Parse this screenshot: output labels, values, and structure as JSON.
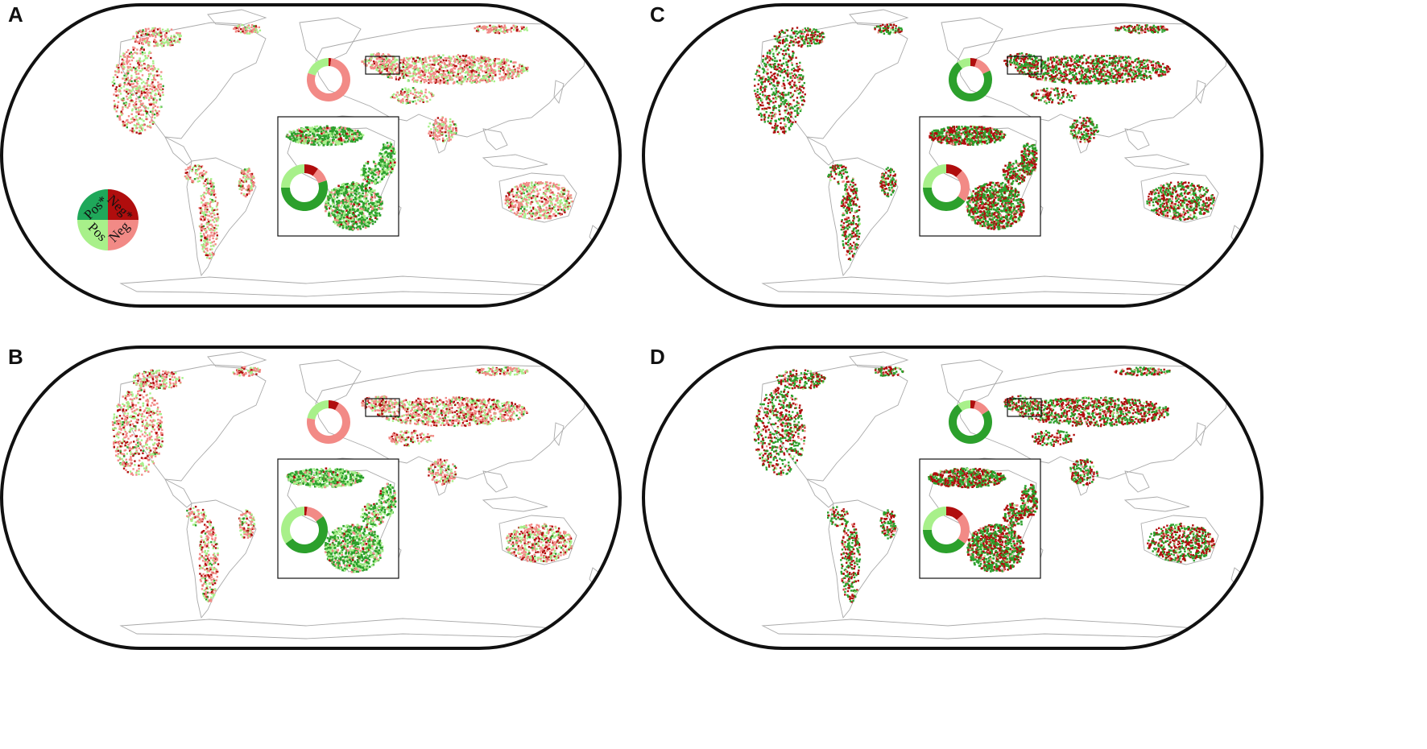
{
  "colors": {
    "pos_sig": "#2ca02c",
    "pos": "#a8f08a",
    "neg_sig": "#b00d0d",
    "neg": "#f28a86",
    "land_outline": "#a9a9a9",
    "frame": "#111111",
    "legend_pos_sig": "#1fa85a"
  },
  "legend": {
    "labels": {
      "pos_sig": "Pos*",
      "neg_sig": "Neg*",
      "pos": "Pos",
      "neg": "Neg"
    }
  },
  "panels": [
    {
      "letter": "A",
      "show_legend": true,
      "eurasia_donut": {
        "neg_sig": 0.02,
        "neg": 0.78,
        "pos": 0.2,
        "pos_sig": 0.0
      },
      "africa_donut": {
        "neg_sig": 0.1,
        "neg": 0.1,
        "pos_sig": 0.55,
        "pos": 0.25
      },
      "dots": {
        "neg_sig": 0.15,
        "neg": 0.5,
        "pos": 0.3,
        "pos_sig": 0.05
      },
      "africa_dots": {
        "neg_sig": 0.05,
        "neg": 0.1,
        "pos": 0.3,
        "pos_sig": 0.55
      }
    },
    {
      "letter": "B",
      "show_legend": false,
      "eurasia_donut": {
        "neg_sig": 0.08,
        "neg": 0.7,
        "pos": 0.22,
        "pos_sig": 0.0
      },
      "africa_donut": {
        "neg_sig": 0.02,
        "neg": 0.13,
        "pos_sig": 0.5,
        "pos": 0.35
      },
      "dots": {
        "neg_sig": 0.2,
        "neg": 0.45,
        "pos": 0.3,
        "pos_sig": 0.05
      },
      "africa_dots": {
        "neg_sig": 0.05,
        "neg": 0.1,
        "pos": 0.35,
        "pos_sig": 0.5
      }
    },
    {
      "letter": "C",
      "show_legend": false,
      "eurasia_donut": {
        "neg_sig": 0.05,
        "neg": 0.13,
        "pos_sig": 0.72,
        "pos": 0.1
      },
      "africa_donut": {
        "neg_sig": 0.12,
        "neg": 0.23,
        "pos_sig": 0.4,
        "pos": 0.25
      },
      "dots": {
        "neg_sig": 0.45,
        "neg": 0.05,
        "pos": 0.05,
        "pos_sig": 0.45
      },
      "africa_dots": {
        "neg_sig": 0.4,
        "neg": 0.05,
        "pos": 0.05,
        "pos_sig": 0.5
      }
    },
    {
      "letter": "D",
      "show_legend": false,
      "eurasia_donut": {
        "neg_sig": 0.04,
        "neg": 0.12,
        "pos_sig": 0.74,
        "pos": 0.1
      },
      "africa_donut": {
        "neg_sig": 0.13,
        "neg": 0.22,
        "pos_sig": 0.4,
        "pos": 0.25
      },
      "dots": {
        "neg_sig": 0.45,
        "neg": 0.05,
        "pos": 0.05,
        "pos_sig": 0.45
      },
      "africa_dots": {
        "neg_sig": 0.4,
        "neg": 0.05,
        "pos": 0.05,
        "pos_sig": 0.5
      }
    }
  ]
}
